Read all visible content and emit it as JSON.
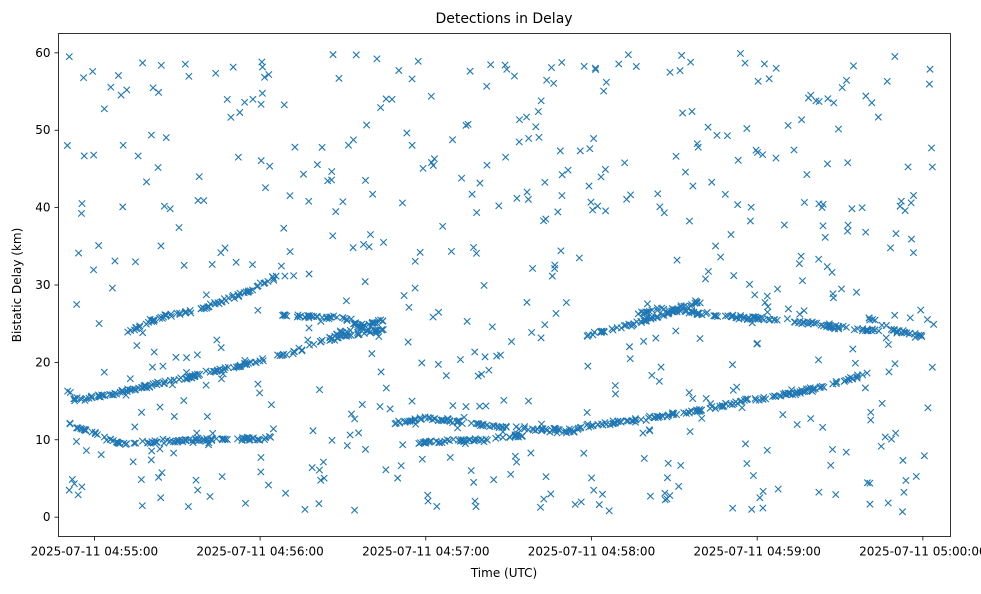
{
  "chart_data": {
    "type": "scatter",
    "title": "Detections in Delay",
    "xlabel": "Time (UTC)",
    "ylabel": "Bistatic Delay (km)",
    "marker": "x",
    "marker_color": "#1f77b4",
    "grid": false,
    "legend": "none",
    "xlim": [
      "2025-07-11 04:54:47",
      "2025-07-11 05:00:10"
    ],
    "ylim": [
      -2.5,
      62.5
    ],
    "xticks": [
      "2025-07-11 04:55:00",
      "2025-07-11 04:56:00",
      "2025-07-11 04:57:00",
      "2025-07-11 04:58:00",
      "2025-07-11 04:59:00",
      "2025-07-11 05:00:00"
    ],
    "yticks": [
      0,
      10,
      20,
      30,
      40,
      50,
      60
    ],
    "time_range": [
      "2025-07-11 04:54:50",
      "2025-07-11 05:00:05"
    ],
    "tracks": [
      {
        "points": [
          [
            "2025-07-11 04:54:51",
            15.2
          ],
          [
            "2025-07-11 04:55:05",
            15.8
          ],
          [
            "2025-07-11 04:55:20",
            17.0
          ],
          [
            "2025-07-11 04:55:40",
            18.5
          ],
          [
            "2025-07-11 04:56:10",
            21.0
          ],
          [
            "2025-07-11 04:56:35",
            24.5
          ],
          [
            "2025-07-11 04:56:45",
            25.5
          ]
        ]
      },
      {
        "points": [
          [
            "2025-07-11 04:54:51",
            12.0
          ],
          [
            "2025-07-11 04:55:10",
            9.5
          ],
          [
            "2025-07-11 04:55:40",
            10.0
          ],
          [
            "2025-07-11 04:56:05",
            10.2
          ]
        ]
      },
      {
        "points": [
          [
            "2025-07-11 04:55:12",
            24.0
          ],
          [
            "2025-07-11 04:55:25",
            26.0
          ],
          [
            "2025-07-11 04:55:35",
            26.5
          ]
        ]
      },
      {
        "points": [
          [
            "2025-07-11 04:55:35",
            26.5
          ],
          [
            "2025-07-11 04:55:55",
            29.0
          ],
          [
            "2025-07-11 04:56:05",
            31.0
          ]
        ]
      },
      {
        "points": [
          [
            "2025-07-11 04:56:08",
            26.0
          ],
          [
            "2025-07-11 04:56:30",
            25.8
          ],
          [
            "2025-07-11 04:56:40",
            24.0
          ]
        ]
      },
      {
        "points": [
          [
            "2025-07-11 04:56:25",
            23.0
          ],
          [
            "2025-07-11 04:56:45",
            24.3
          ]
        ]
      },
      {
        "points": [
          [
            "2025-07-11 04:56:48",
            12.0
          ],
          [
            "2025-07-11 04:57:00",
            12.8
          ],
          [
            "2025-07-11 04:57:20",
            12.0
          ],
          [
            "2025-07-11 04:57:35",
            11.5
          ],
          [
            "2025-07-11 04:57:55",
            11.0
          ]
        ]
      },
      {
        "points": [
          [
            "2025-07-11 04:56:55",
            9.5
          ],
          [
            "2025-07-11 04:57:20",
            10.0
          ],
          [
            "2025-07-11 04:57:35",
            10.5
          ]
        ]
      },
      {
        "points": [
          [
            "2025-07-11 04:57:55",
            23.0
          ],
          [
            "2025-07-11 04:58:10",
            24.5
          ],
          [
            "2025-07-11 04:58:25",
            26.0
          ],
          [
            "2025-07-11 04:58:40",
            28.0
          ]
        ]
      },
      {
        "points": [
          [
            "2025-07-11 04:58:15",
            26.0
          ],
          [
            "2025-07-11 04:58:25",
            27.0
          ],
          [
            "2025-07-11 04:58:45",
            26.0
          ],
          [
            "2025-07-11 04:59:10",
            25.5
          ],
          [
            "2025-07-11 04:59:30",
            24.5
          ],
          [
            "2025-07-11 04:59:45",
            24.0
          ]
        ]
      },
      {
        "points": [
          [
            "2025-07-11 04:57:55",
            11.5
          ],
          [
            "2025-07-11 04:58:15",
            12.5
          ],
          [
            "2025-07-11 04:58:35",
            13.5
          ],
          [
            "2025-07-11 04:58:55",
            15.0
          ],
          [
            "2025-07-11 04:59:20",
            16.5
          ],
          [
            "2025-07-11 04:59:40",
            18.5
          ]
        ]
      },
      {
        "points": [
          [
            "2025-07-11 04:59:40",
            26.0
          ],
          [
            "2025-07-11 04:59:50",
            24.0
          ],
          [
            "2025-07-11 05:00:00",
            23.5
          ]
        ]
      }
    ],
    "seed": 4242,
    "noise_count": 560,
    "total_points": 1480
  }
}
